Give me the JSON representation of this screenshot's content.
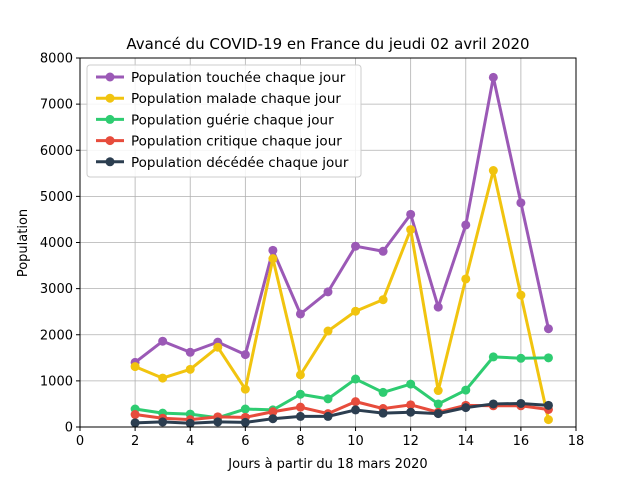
{
  "chart_data": {
    "type": "line",
    "title": "Avancé du COVID-19 en France du jeudi 02 avril 2020",
    "xlabel": "Jours à partir du 18 mars 2020",
    "ylabel": "Population",
    "xlim": [
      0,
      18
    ],
    "ylim": [
      0,
      8000
    ],
    "xticks": [
      0,
      2,
      4,
      6,
      8,
      10,
      12,
      14,
      16,
      18
    ],
    "yticks": [
      0,
      1000,
      2000,
      3000,
      4000,
      5000,
      6000,
      7000,
      8000
    ],
    "grid": true,
    "legend_position": "top-left",
    "x": [
      2,
      3,
      4,
      5,
      6,
      7,
      8,
      9,
      10,
      11,
      12,
      13,
      14,
      15,
      16,
      17
    ],
    "series": [
      {
        "name": "Population touchée chaque jour",
        "color": "#9b59b6",
        "values": [
          1400,
          1860,
          1620,
          1840,
          1570,
          3830,
          2450,
          2930,
          3920,
          3810,
          4610,
          2600,
          4380,
          7580,
          4860,
          2130
        ]
      },
      {
        "name": "Population malade chaque jour",
        "color": "#f1c40f",
        "values": [
          1310,
          1060,
          1250,
          1730,
          820,
          3650,
          1130,
          2080,
          2510,
          2760,
          4280,
          790,
          3210,
          5560,
          2860,
          160
        ]
      },
      {
        "name": "Population guérie chaque jour",
        "color": "#2ecc71",
        "values": [
          390,
          300,
          280,
          200,
          390,
          370,
          710,
          610,
          1040,
          750,
          930,
          500,
          800,
          1520,
          1490,
          1500
        ]
      },
      {
        "name": "Population critique chaque jour",
        "color": "#e74c3c",
        "values": [
          270,
          190,
          160,
          220,
          210,
          330,
          430,
          290,
          550,
          400,
          480,
          320,
          470,
          460,
          460,
          380
        ]
      },
      {
        "name": "Population décédée chaque jour",
        "color": "#2c3e50",
        "values": [
          90,
          110,
          80,
          110,
          100,
          180,
          230,
          230,
          370,
          300,
          320,
          290,
          420,
          500,
          510,
          470
        ]
      }
    ]
  }
}
